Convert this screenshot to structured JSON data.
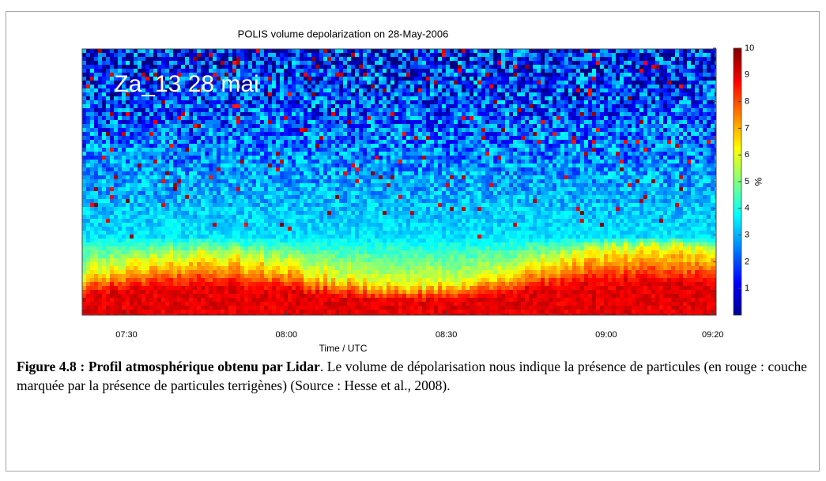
{
  "chart_data": {
    "type": "heatmap",
    "title": "POLIS volume depolarization on 28-May-2006",
    "xlabel": "Time / UTC",
    "xticks": [
      "07:30",
      "08:00",
      "08:30",
      "09:00",
      "09:20"
    ],
    "annotation": "Za_13 28 mai",
    "colorbar": {
      "label": "%",
      "lim": [
        0,
        10
      ],
      "ticks": [
        1,
        2,
        3,
        4,
        5,
        6,
        7,
        8,
        9,
        10
      ]
    }
  },
  "caption": {
    "label": "Figure 4.8 : Profil atmosphérique obtenu par Lidar",
    "text": ". Le volume de dépolarisation nous indique la présence de particules (en rouge : couche marquée par la présence de particules terrigènes) (Source : Hesse et al., 2008)."
  }
}
